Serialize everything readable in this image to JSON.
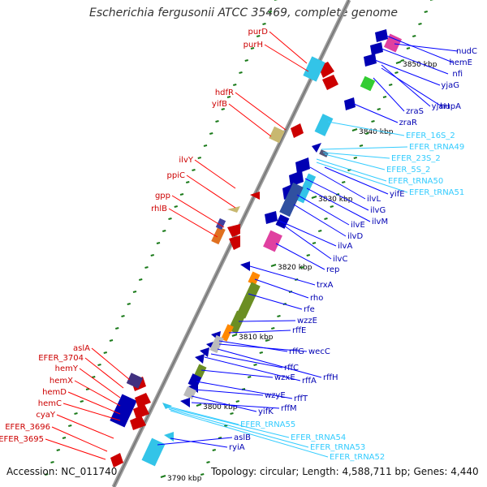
{
  "title": "Escherichia fergusonii ATCC 35469, complete genome",
  "accession_text": "Accession: NC_011740",
  "topology_text": "Topology: circular; Length: 4,588,711 bp; Genes: 4,440",
  "colors": {
    "red": "#cc0000",
    "blue": "#0000b3",
    "cyan": "#33c4e8",
    "spine": "#999999",
    "leader_red": "#ff0000",
    "leader_blue": "#0000ff",
    "leader_cyan": "#33ccff",
    "tick": "#1a7a1a"
  },
  "left_labels": [
    "purD",
    "purH",
    "hdfR",
    "yifB",
    "ilvY",
    "ppiC",
    "gpp",
    "rhlB",
    "aslA",
    "EFER_3704",
    "hemY",
    "hemX",
    "hemD",
    "hemC",
    "cyaY",
    "EFER_3696",
    "EFER_3695"
  ],
  "right_labels_top": [
    "nudC",
    "hemE",
    "nfi",
    "yjaG",
    "yjaH",
    "hupA",
    "zraS",
    "zraR"
  ],
  "rna_labels_top": [
    "EFER_16S_2",
    "EFER_tRNA49",
    "EFER_23S_2",
    "EFER_5S_2",
    "EFER_tRNA50",
    "EFER_tRNA51"
  ],
  "right_labels_mid": [
    "yifE",
    "ilvL",
    "ilvG",
    "ilvM",
    "ilvE",
    "ilvD",
    "ilvA",
    "ilvC",
    "rep",
    "trxA",
    "rho",
    "rfe",
    "wzzE",
    "rffE",
    "rffG",
    "wecC",
    "rffH",
    "rffC",
    "rffA",
    "wzxE",
    "rffT",
    "wzyE",
    "yifK",
    "rffM",
    "aslB",
    "ryiA"
  ],
  "rna_labels_bottom": [
    "EFER_tRNA55",
    "EFER_tRNA54",
    "EFER_tRNA53",
    "EFER_tRNA52"
  ],
  "scale_labels": [
    "3850 kbp",
    "3840 kbp",
    "3830 kbp",
    "3820 kbp",
    "3810 kbp",
    "3800 kbp",
    "3790 kbp"
  ]
}
